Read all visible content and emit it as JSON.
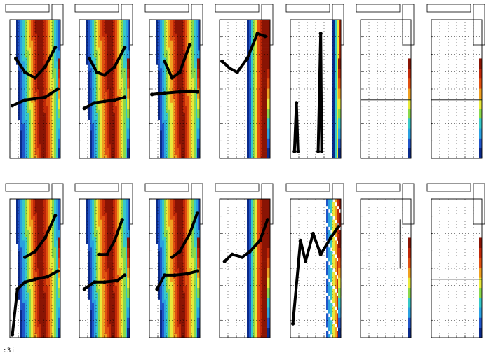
{
  "footer": {
    "text": ":3i"
  },
  "colors": {
    "palette": [
      "#0a2a8a",
      "#1f55c8",
      "#2aa0e0",
      "#36c8c8",
      "#8ad84a",
      "#e8e83a",
      "#f0a020",
      "#e05010",
      "#c02808",
      "#8a1404"
    ],
    "marker": "#000000",
    "frame": "#000000",
    "grid": "#000000"
  },
  "chart_data": [
    {
      "row": 1,
      "col": 1,
      "type": "heatmap",
      "field": "full",
      "overlay": "curves",
      "curves": [
        {
          "x": [
            0.12,
            0.3,
            0.5,
            0.7,
            0.9
          ],
          "y": [
            0.72,
            0.62,
            0.58,
            0.66,
            0.8
          ]
        },
        {
          "x": [
            0.05,
            0.3,
            0.5,
            0.7,
            0.95
          ],
          "y": [
            0.38,
            0.42,
            0.43,
            0.44,
            0.5
          ]
        }
      ]
    },
    {
      "row": 1,
      "col": 2,
      "type": "heatmap",
      "field": "full",
      "overlay": "curves",
      "curves": [
        {
          "x": [
            0.2,
            0.35,
            0.5,
            0.7,
            0.9
          ],
          "y": [
            0.72,
            0.62,
            0.6,
            0.66,
            0.8
          ]
        },
        {
          "x": [
            0.1,
            0.3,
            0.5,
            0.7,
            0.9
          ],
          "y": [
            0.36,
            0.4,
            0.41,
            0.42,
            0.44
          ]
        }
      ]
    },
    {
      "row": 1,
      "col": 3,
      "type": "heatmap",
      "field": "full",
      "overlay": "curves",
      "curves": [
        {
          "x": [
            0.3,
            0.45,
            0.6,
            0.8
          ],
          "y": [
            0.7,
            0.58,
            0.62,
            0.82
          ]
        },
        {
          "x": [
            0.05,
            0.3,
            0.6,
            0.95
          ],
          "y": [
            0.46,
            0.47,
            0.48,
            0.48
          ]
        }
      ]
    },
    {
      "row": 1,
      "col": 4,
      "type": "heatmap",
      "field": "partial",
      "overlay": "noisy",
      "curves": [
        {
          "x": [
            0.05,
            0.2,
            0.35,
            0.55,
            0.75,
            0.9
          ],
          "y": [
            0.7,
            0.65,
            0.62,
            0.72,
            0.9,
            0.88
          ]
        }
      ]
    },
    {
      "row": 1,
      "col": 5,
      "type": "heatmap",
      "field": "edge",
      "overlay": "vertical",
      "curves": [
        {
          "x": [
            0.08,
            0.12,
            0.15
          ],
          "y": [
            0.05,
            0.4,
            0.05
          ]
        },
        {
          "x": [
            0.55,
            0.6,
            0.62
          ],
          "y": [
            0.05,
            0.9,
            0.05
          ]
        }
      ]
    },
    {
      "row": 1,
      "col": 6,
      "type": "heatmap",
      "field": "empty",
      "overlay": "flat",
      "curves": [
        {
          "x": [
            0.0,
            1.0
          ],
          "y": [
            0.42,
            0.42
          ]
        }
      ]
    },
    {
      "row": 1,
      "col": 7,
      "type": "heatmap",
      "field": "empty",
      "overlay": "flat",
      "curves": [
        {
          "x": [
            0.0,
            1.0
          ],
          "y": [
            0.42,
            0.42
          ]
        }
      ]
    },
    {
      "row": 2,
      "col": 1,
      "type": "heatmap",
      "field": "full",
      "overlay": "curves",
      "curves": [
        {
          "x": [
            0.3,
            0.5,
            0.7,
            0.9
          ],
          "y": [
            0.58,
            0.62,
            0.72,
            0.88
          ]
        },
        {
          "x": [
            0.05,
            0.15,
            0.3,
            0.5,
            0.75,
            0.95
          ],
          "y": [
            0.02,
            0.35,
            0.4,
            0.42,
            0.44,
            0.48
          ]
        }
      ]
    },
    {
      "row": 2,
      "col": 2,
      "type": "heatmap",
      "field": "full",
      "overlay": "curves",
      "curves": [
        {
          "x": [
            0.4,
            0.55,
            0.7,
            0.85
          ],
          "y": [
            0.6,
            0.6,
            0.7,
            0.85
          ]
        },
        {
          "x": [
            0.1,
            0.3,
            0.5,
            0.75,
            0.9
          ],
          "y": [
            0.35,
            0.4,
            0.4,
            0.41,
            0.45
          ]
        }
      ]
    },
    {
      "row": 2,
      "col": 3,
      "type": "heatmap",
      "field": "full",
      "overlay": "curves",
      "curves": [
        {
          "x": [
            0.45,
            0.6,
            0.8,
            0.95
          ],
          "y": [
            0.58,
            0.62,
            0.75,
            0.9
          ]
        },
        {
          "x": [
            0.15,
            0.3,
            0.5,
            0.75,
            0.95
          ],
          "y": [
            0.35,
            0.45,
            0.45,
            0.46,
            0.48
          ]
        }
      ]
    },
    {
      "row": 2,
      "col": 4,
      "type": "heatmap",
      "field": "partial",
      "overlay": "noisy",
      "curves": [
        {
          "x": [
            0.1,
            0.25,
            0.45,
            0.6,
            0.8,
            0.95
          ],
          "y": [
            0.55,
            0.6,
            0.58,
            0.62,
            0.7,
            0.85
          ]
        }
      ]
    },
    {
      "row": 2,
      "col": 5,
      "type": "heatmap",
      "field": "speckle",
      "overlay": "noisy",
      "curves": [
        {
          "x": [
            0.05,
            0.2,
            0.3,
            0.45,
            0.6,
            0.8,
            0.95
          ],
          "y": [
            0.1,
            0.7,
            0.55,
            0.75,
            0.6,
            0.72,
            0.8
          ]
        }
      ]
    },
    {
      "row": 2,
      "col": 6,
      "type": "heatmap",
      "field": "empty",
      "overlay": "flat",
      "curves": [
        {
          "x": [
            0.78,
            0.78
          ],
          "y": [
            0.5,
            0.85
          ]
        }
      ]
    },
    {
      "row": 2,
      "col": 7,
      "type": "heatmap",
      "field": "empty",
      "overlay": "flat",
      "curves": [
        {
          "x": [
            0.0,
            1.0
          ],
          "y": [
            0.42,
            0.42
          ]
        }
      ]
    }
  ]
}
